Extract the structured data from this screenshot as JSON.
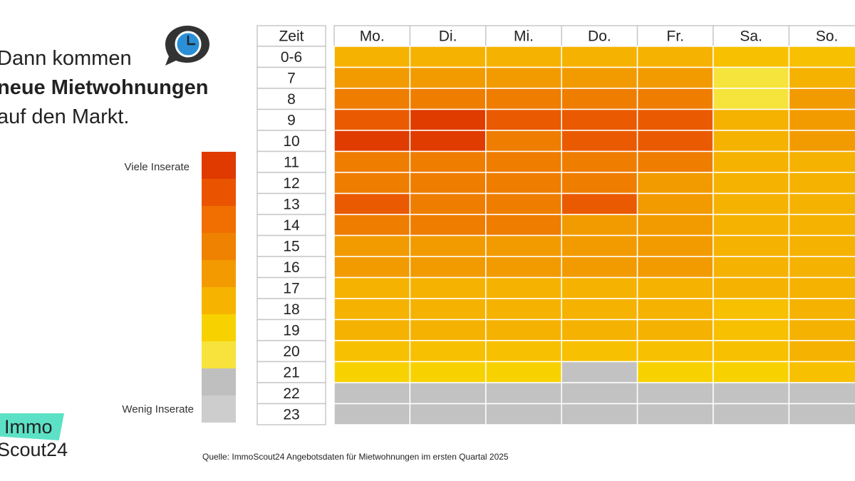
{
  "headline": {
    "line1": "Dann kommen",
    "line2": "neue Mietwohnungen",
    "line3": "auf den Markt."
  },
  "legend": {
    "high_label": "Viele Inserate",
    "low_label": "Wenig Inserate",
    "scale_colors": [
      "#e03a00",
      "#ea5400",
      "#f06f00",
      "#ef8200",
      "#f39a00",
      "#f6b400",
      "#f8d200",
      "#f7e33c",
      "#bfbfbf",
      "#cdcdcd"
    ]
  },
  "logo": {
    "line1": "Immo",
    "line2": "Scout24"
  },
  "source": "Quelle: ImmoScout24 Angebotsdaten für Mietwohnungen im ersten Quartal 2025",
  "chart_data": {
    "type": "heatmap",
    "title": "Dann kommen neue Mietwohnungen auf den Markt.",
    "corner_label": "Zeit",
    "columns": [
      "Mo.",
      "Di.",
      "Mi.",
      "Do.",
      "Fr.",
      "Sa.",
      "So."
    ],
    "rows": [
      "0-6",
      "7",
      "8",
      "9",
      "10",
      "11",
      "12",
      "13",
      "14",
      "15",
      "16",
      "17",
      "18",
      "19",
      "20",
      "21",
      "22",
      "23"
    ],
    "scale": "level 9 = Viele Inserate (dark red), level 1 = Wenig Inserate (grey)",
    "levels": [
      [
        5,
        5,
        5,
        5,
        5,
        4,
        4
      ],
      [
        6,
        6,
        6,
        6,
        6,
        2,
        5
      ],
      [
        7,
        7,
        7,
        7,
        7,
        2,
        6
      ],
      [
        8,
        9,
        8,
        8,
        8,
        5,
        6
      ],
      [
        9,
        9,
        7,
        8,
        8,
        5,
        6
      ],
      [
        7,
        7,
        7,
        7,
        7,
        5,
        5
      ],
      [
        7,
        7,
        7,
        7,
        6,
        5,
        5
      ],
      [
        8,
        7,
        7,
        8,
        6,
        5,
        5
      ],
      [
        7,
        7,
        7,
        6,
        6,
        5,
        5
      ],
      [
        6,
        6,
        6,
        6,
        6,
        5,
        5
      ],
      [
        6,
        6,
        6,
        6,
        6,
        5,
        5
      ],
      [
        5,
        5,
        5,
        5,
        5,
        5,
        5
      ],
      [
        5,
        5,
        5,
        5,
        5,
        4,
        5
      ],
      [
        5,
        5,
        5,
        5,
        5,
        4,
        5
      ],
      [
        4,
        4,
        4,
        4,
        4,
        4,
        5
      ],
      [
        3,
        3,
        3,
        1,
        3,
        3,
        4
      ],
      [
        1,
        1,
        1,
        1,
        1,
        1,
        1
      ],
      [
        1,
        1,
        1,
        1,
        1,
        1,
        1
      ]
    ],
    "level_colors": {
      "1": "#c2c2c2",
      "2": "#f6e33c",
      "3": "#f8d200",
      "4": "#f7c000",
      "5": "#f5b200",
      "6": "#f29b00",
      "7": "#ef7d00",
      "8": "#ea5a00",
      "9": "#e03c00"
    }
  }
}
